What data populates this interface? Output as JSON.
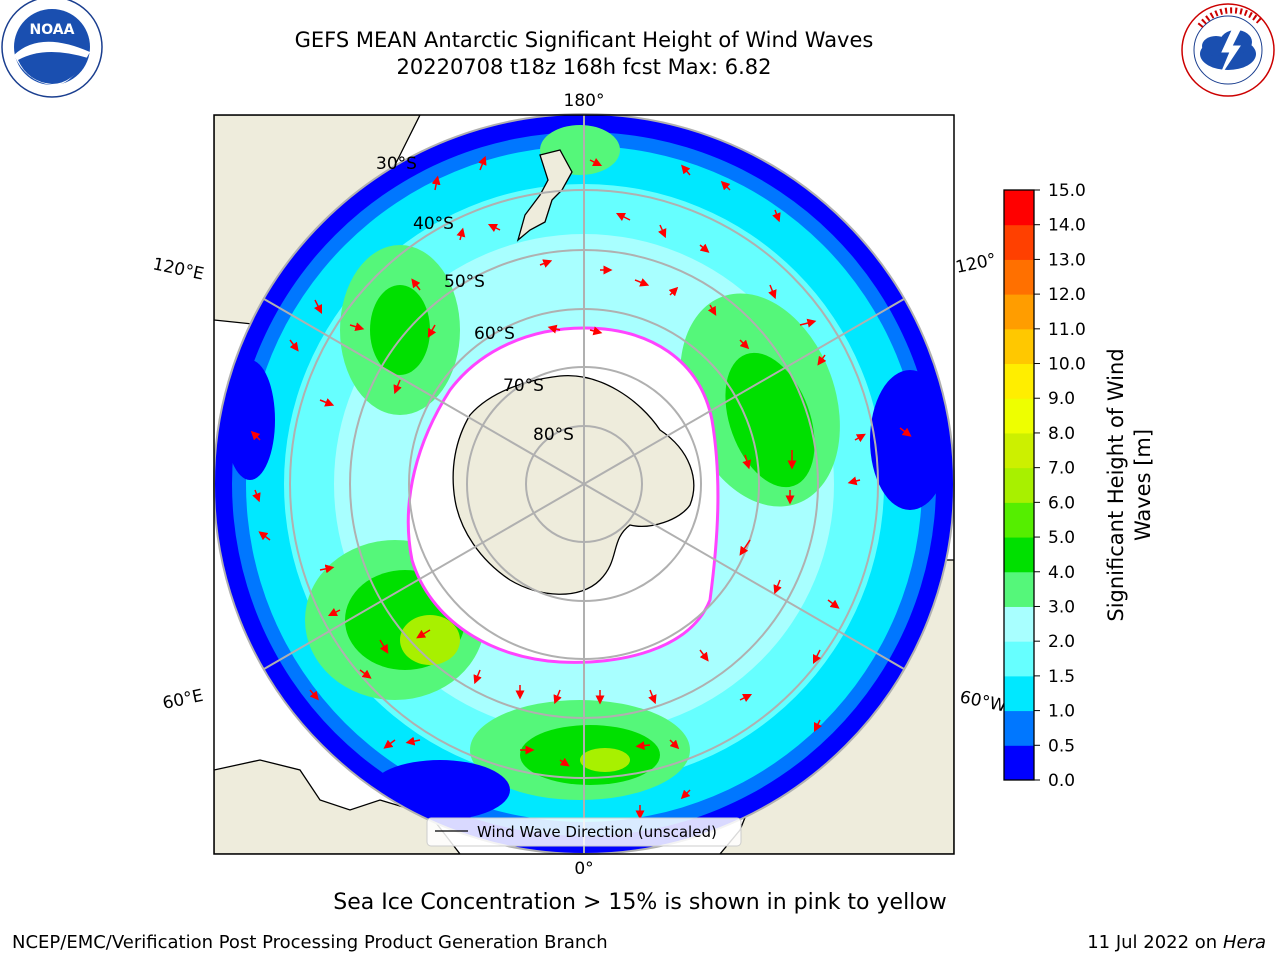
{
  "header": {
    "title_line1": "GEFS MEAN Antarctic Significant Height of Wind Waves",
    "title_line2": "20220708 t18z 168h fcst   Max: 6.82"
  },
  "logos": {
    "left": {
      "name": "NOAA",
      "ring_text": "NATIONAL OCEANIC AND ATMOSPHERIC ADMINISTRATION · U.S. DEPARTMENT OF COMMERCE"
    },
    "right": {
      "ring_text": "NATIONAL WEATHER SERVICE"
    }
  },
  "map": {
    "lon_labels": {
      "top": "180°",
      "bottom": "0°",
      "upper_left": "120°E",
      "upper_right": "120°",
      "lower_left": "60°E",
      "lower_right": "60°W"
    },
    "lat_labels": [
      "30°S",
      "40°S",
      "50°S",
      "60°S",
      "70°S",
      "80°S"
    ],
    "legend_label": "Wind Wave Direction (unscaled)",
    "colors": {
      "ocean_low": "#0000ff",
      "land": "#eeecdc",
      "ice": "#ffffff",
      "ice_edge": "#ff44ff",
      "arrow": "#ff0000",
      "grid": "#b0b0b0"
    }
  },
  "colorbar": {
    "label_line1": "Significant Height of Wind",
    "label_line2": "Waves [m]",
    "ticks": [
      "0.0",
      "0.5",
      "1.0",
      "1.5",
      "2.0",
      "3.0",
      "4.0",
      "5.0",
      "6.0",
      "7.0",
      "8.0",
      "9.0",
      "10.0",
      "11.0",
      "12.0",
      "13.0",
      "14.0",
      "15.0"
    ],
    "colors": [
      "#0000ff",
      "#0077ff",
      "#00e8ff",
      "#66ffff",
      "#a8ffff",
      "#55f77a",
      "#00e000",
      "#55ee00",
      "#a8f000",
      "#ccf000",
      "#eeff00",
      "#ffee00",
      "#ffc800",
      "#ff9d00",
      "#ff7000",
      "#ff4000",
      "#ff0000"
    ]
  },
  "note": "Sea Ice Concentration > 15% is shown in pink to yellow",
  "footer": {
    "left": "NCEP/EMC/Verification Post Processing Product Generation Branch",
    "date": "11 Jul 2022 on ",
    "machine": "Hera"
  }
}
